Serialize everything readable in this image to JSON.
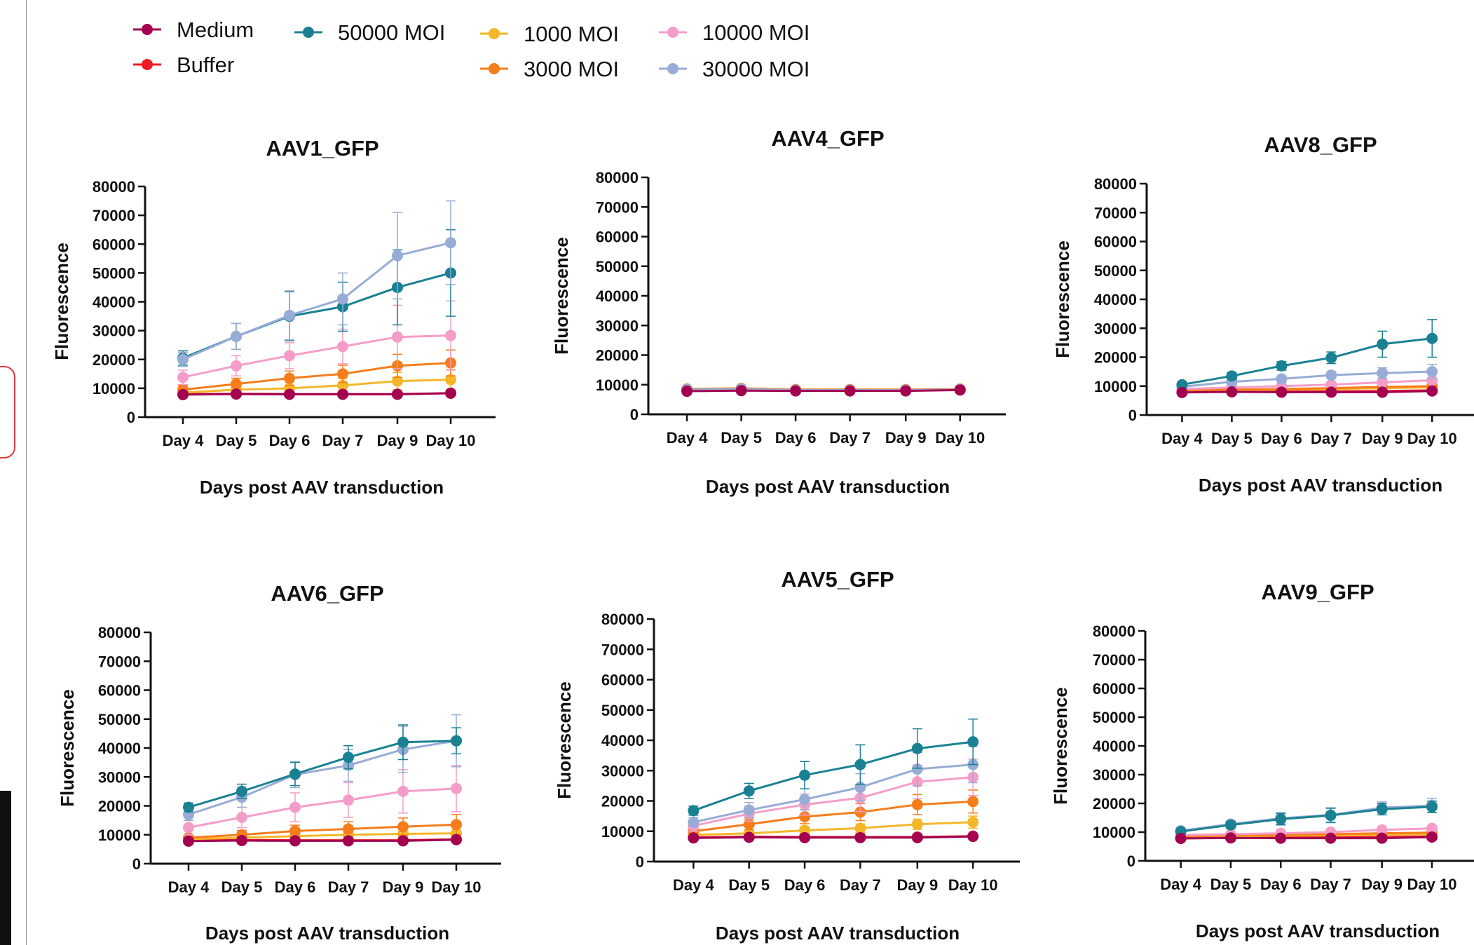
{
  "colors": {
    "Medium": "#a3004f",
    "Buffer": "#ee1c24",
    "50000 MOI": "#1a8193",
    "1000 MOI": "#f4b72a",
    "3000 MOI": "#f57d1c",
    "10000 MOI": "#f59dc8",
    "30000 MOI": "#97acd6"
  },
  "chart_data": [
    {
      "type": "line",
      "title": "AAV1_GFP",
      "xlabel": "Days post AAV transduction",
      "ylabel": "Fluorescence",
      "categories": [
        "Day 4",
        "Day 5",
        "Day 6",
        "Day 7",
        "Day 9",
        "Day 10"
      ],
      "ylim": [
        0,
        80000
      ],
      "yticks": [
        "0",
        "10000",
        "20000",
        "30000",
        "40000",
        "50000",
        "60000",
        "70000",
        "80000"
      ],
      "series": [
        {
          "name": "Buffer",
          "values": [
            8000,
            8100,
            8000,
            8000,
            8000,
            8300
          ],
          "errors": [
            500,
            500,
            500,
            500,
            500,
            500
          ]
        },
        {
          "name": "1000 MOI",
          "values": [
            8500,
            9500,
            10000,
            11000,
            12500,
            13000
          ],
          "errors": [
            1000,
            1500,
            2000,
            2500,
            3000,
            3500
          ]
        },
        {
          "name": "3000 MOI",
          "values": [
            9500,
            11500,
            13500,
            15000,
            17800,
            18800
          ],
          "errors": [
            1500,
            2000,
            2500,
            3000,
            4000,
            4500
          ]
        },
        {
          "name": "10000 MOI",
          "values": [
            13800,
            17800,
            21300,
            24500,
            27800,
            28300
          ],
          "errors": [
            2500,
            3500,
            4500,
            6000,
            11000,
            12000
          ]
        },
        {
          "name": "50000 MOI",
          "values": [
            20500,
            28000,
            35000,
            38300,
            45000,
            50000
          ],
          "errors": [
            2500,
            4500,
            8500,
            8500,
            13000,
            15000
          ]
        },
        {
          "name": "30000 MOI",
          "values": [
            20000,
            28000,
            35300,
            41000,
            56000,
            60500
          ],
          "errors": [
            2500,
            4500,
            8500,
            9000,
            15000,
            14500
          ]
        },
        {
          "name": "Medium",
          "values": [
            7800,
            8000,
            7900,
            7900,
            7900,
            8300
          ],
          "errors": [
            300,
            300,
            300,
            300,
            300,
            300
          ]
        }
      ]
    },
    {
      "type": "line",
      "title": "AAV4_GFP",
      "xlabel": "Days post AAV transduction",
      "ylabel": "Fluorescence",
      "categories": [
        "Day 4",
        "Day 5",
        "Day 6",
        "Day 7",
        "Day 9",
        "Day 10"
      ],
      "ylim": [
        0,
        80000
      ],
      "yticks": [
        "0",
        "10000",
        "20000",
        "30000",
        "40000",
        "50000",
        "60000",
        "70000",
        "80000"
      ],
      "series": [
        {
          "name": "Buffer",
          "values": [
            8300,
            8500,
            8200,
            8200,
            8200,
            8500
          ],
          "errors": [
            300,
            300,
            300,
            300,
            300,
            300
          ]
        },
        {
          "name": "1000 MOI",
          "values": [
            8600,
            8800,
            8400,
            8400,
            8400,
            8600
          ],
          "errors": [
            300,
            300,
            300,
            300,
            300,
            300
          ]
        },
        {
          "name": "3000 MOI",
          "values": [
            8500,
            8700,
            8300,
            8300,
            8300,
            8500
          ],
          "errors": [
            300,
            300,
            300,
            300,
            300,
            300
          ]
        },
        {
          "name": "10000 MOI",
          "values": [
            8400,
            8600,
            8200,
            8200,
            8200,
            8400
          ],
          "errors": [
            300,
            300,
            300,
            300,
            300,
            300
          ]
        },
        {
          "name": "50000 MOI",
          "values": [
            8300,
            8500,
            8100,
            8100,
            8100,
            8300
          ],
          "errors": [
            300,
            300,
            300,
            300,
            300,
            300
          ]
        },
        {
          "name": "30000 MOI",
          "values": [
            8300,
            8500,
            8100,
            8100,
            8100,
            8300
          ],
          "errors": [
            300,
            300,
            300,
            300,
            300,
            300
          ]
        },
        {
          "name": "Medium",
          "values": [
            7800,
            8000,
            7900,
            7900,
            7900,
            8200
          ],
          "errors": [
            300,
            300,
            300,
            300,
            300,
            300
          ]
        }
      ]
    },
    {
      "type": "line",
      "title": "AAV8_GFP",
      "xlabel": "Days post AAV transduction",
      "ylabel": "Fluorescence",
      "categories": [
        "Day 4",
        "Day 5",
        "Day 6",
        "Day 7",
        "Day 9",
        "Day 10"
      ],
      "ylim": [
        0,
        80000
      ],
      "yticks": [
        "0",
        "10000",
        "20000",
        "30000",
        "40000",
        "50000",
        "60000",
        "70000",
        "80000"
      ],
      "series": [
        {
          "name": "Buffer",
          "values": [
            8000,
            8200,
            8200,
            8200,
            8300,
            8500
          ],
          "errors": [
            300,
            300,
            300,
            300,
            300,
            300
          ]
        },
        {
          "name": "1000 MOI",
          "values": [
            8300,
            8600,
            8800,
            9000,
            9300,
            9600
          ],
          "errors": [
            400,
            400,
            400,
            400,
            500,
            500
          ]
        },
        {
          "name": "3000 MOI",
          "values": [
            8500,
            8800,
            9000,
            9300,
            9700,
            10000
          ],
          "errors": [
            400,
            400,
            400,
            400,
            500,
            500
          ]
        },
        {
          "name": "10000 MOI",
          "values": [
            9000,
            9500,
            10000,
            10500,
            11300,
            12000
          ],
          "errors": [
            500,
            500,
            600,
            600,
            700,
            800
          ]
        },
        {
          "name": "30000 MOI",
          "values": [
            9800,
            11500,
            12500,
            13800,
            14500,
            15000
          ],
          "errors": [
            600,
            800,
            1000,
            1200,
            1800,
            2500
          ]
        },
        {
          "name": "50000 MOI",
          "values": [
            10500,
            13500,
            17000,
            19800,
            24500,
            26500
          ],
          "errors": [
            800,
            1200,
            1500,
            2000,
            4500,
            6500
          ]
        },
        {
          "name": "Medium",
          "values": [
            7800,
            8000,
            7900,
            7900,
            7900,
            8300
          ],
          "errors": [
            300,
            300,
            300,
            300,
            300,
            300
          ]
        }
      ]
    },
    {
      "type": "line",
      "title": "AAV6_GFP",
      "xlabel": "Days post AAV transduction",
      "ylabel": "Fluorescence",
      "categories": [
        "Day 4",
        "Day 5",
        "Day 6",
        "Day 7",
        "Day 9",
        "Day 10"
      ],
      "ylim": [
        0,
        80000
      ],
      "yticks": [
        "0",
        "10000",
        "20000",
        "30000",
        "40000",
        "50000",
        "60000",
        "70000",
        "80000"
      ],
      "series": [
        {
          "name": "Buffer",
          "values": [
            8000,
            8200,
            8100,
            8100,
            8100,
            8400
          ],
          "errors": [
            400,
            400,
            400,
            400,
            400,
            400
          ]
        },
        {
          "name": "1000 MOI",
          "values": [
            8500,
            9000,
            9500,
            10000,
            10300,
            10500
          ],
          "errors": [
            800,
            1000,
            1200,
            1500,
            1800,
            2000
          ]
        },
        {
          "name": "3000 MOI",
          "values": [
            9000,
            10000,
            11300,
            12000,
            12800,
            13500
          ],
          "errors": [
            1000,
            1500,
            2000,
            2500,
            3000,
            3500
          ]
        },
        {
          "name": "10000 MOI",
          "values": [
            12500,
            16000,
            19500,
            22000,
            25000,
            26000
          ],
          "errors": [
            2500,
            3500,
            5000,
            6000,
            7500,
            8000
          ]
        },
        {
          "name": "30000 MOI",
          "values": [
            17000,
            23000,
            30800,
            34000,
            39500,
            42500
          ],
          "errors": [
            2000,
            3500,
            4500,
            5500,
            8000,
            9000
          ]
        },
        {
          "name": "50000 MOI",
          "values": [
            19500,
            25000,
            31000,
            36800,
            42000,
            42500
          ],
          "errors": [
            1500,
            2500,
            4000,
            4000,
            6000,
            4500
          ]
        },
        {
          "name": "Medium",
          "values": [
            7800,
            8000,
            7900,
            7900,
            7900,
            8300
          ],
          "errors": [
            300,
            300,
            300,
            300,
            300,
            300
          ]
        }
      ]
    },
    {
      "type": "line",
      "title": "AAV5_GFP",
      "xlabel": "Days post AAV transduction",
      "ylabel": "Fluorescence",
      "categories": [
        "Day 4",
        "Day 5",
        "Day 6",
        "Day 7",
        "Day 9",
        "Day 10"
      ],
      "ylim": [
        0,
        80000
      ],
      "yticks": [
        "0",
        "10000",
        "20000",
        "30000",
        "40000",
        "50000",
        "60000",
        "70000",
        "80000"
      ],
      "series": [
        {
          "name": "Buffer",
          "values": [
            8000,
            8200,
            8100,
            8100,
            8100,
            8400
          ],
          "errors": [
            300,
            300,
            300,
            300,
            300,
            300
          ]
        },
        {
          "name": "1000 MOI",
          "values": [
            8800,
            9300,
            10300,
            11000,
            12300,
            13000
          ],
          "errors": [
            700,
            900,
            1100,
            1400,
            1700,
            2000
          ]
        },
        {
          "name": "3000 MOI",
          "values": [
            10000,
            12300,
            14800,
            16300,
            18800,
            19800
          ],
          "errors": [
            1200,
            1800,
            2300,
            2800,
            3300,
            3800
          ]
        },
        {
          "name": "10000 MOI",
          "values": [
            11800,
            15800,
            18800,
            21000,
            26300,
            27800
          ],
          "errors": [
            1800,
            2500,
            3500,
            4500,
            5500,
            6000
          ]
        },
        {
          "name": "30000 MOI",
          "values": [
            13000,
            17000,
            20500,
            24500,
            30500,
            32000
          ],
          "errors": [
            1500,
            2500,
            3500,
            4500,
            5500,
            6000
          ]
        },
        {
          "name": "50000 MOI",
          "values": [
            16800,
            23300,
            28500,
            32000,
            37300,
            39500
          ],
          "errors": [
            1500,
            2500,
            4500,
            6500,
            6500,
            7500
          ]
        },
        {
          "name": "Medium",
          "values": [
            7800,
            8000,
            7900,
            7900,
            7900,
            8300
          ],
          "errors": [
            300,
            300,
            300,
            300,
            300,
            300
          ]
        }
      ]
    },
    {
      "type": "line",
      "title": "AAV9_GFP",
      "xlabel": "Days post AAV transduction",
      "ylabel": "Fluorescence",
      "categories": [
        "Day 4",
        "Day 5",
        "Day 6",
        "Day 7",
        "Day 9",
        "Day 10"
      ],
      "ylim": [
        0,
        80000
      ],
      "yticks": [
        "0",
        "10000",
        "20000",
        "30000",
        "40000",
        "50000",
        "60000",
        "70000",
        "80000"
      ],
      "series": [
        {
          "name": "Buffer",
          "values": [
            8000,
            8200,
            8200,
            8200,
            8300,
            8500
          ],
          "errors": [
            300,
            300,
            300,
            300,
            300,
            300
          ]
        },
        {
          "name": "1000 MOI",
          "values": [
            8300,
            8600,
            8800,
            8900,
            9100,
            9300
          ],
          "errors": [
            300,
            300,
            300,
            300,
            300,
            300
          ]
        },
        {
          "name": "3000 MOI",
          "values": [
            8500,
            8900,
            9100,
            9300,
            9600,
            9800
          ],
          "errors": [
            300,
            300,
            300,
            300,
            300,
            300
          ]
        },
        {
          "name": "10000 MOI",
          "values": [
            9000,
            9300,
            9600,
            10000,
            10800,
            11300
          ],
          "errors": [
            500,
            500,
            500,
            500,
            600,
            700
          ]
        },
        {
          "name": "30000 MOI",
          "values": [
            10500,
            12800,
            14800,
            16000,
            18500,
            19300
          ],
          "errors": [
            800,
            1200,
            2000,
            2500,
            2000,
            2500
          ]
        },
        {
          "name": "50000 MOI",
          "values": [
            10200,
            12500,
            14500,
            15800,
            18000,
            18800
          ],
          "errors": [
            800,
            1200,
            2000,
            2500,
            2000,
            2000
          ]
        },
        {
          "name": "Medium",
          "values": [
            7800,
            8000,
            7900,
            7900,
            7900,
            8300
          ],
          "errors": [
            300,
            300,
            300,
            300,
            300,
            300
          ]
        }
      ]
    }
  ],
  "legend": [
    {
      "label": "Medium"
    },
    {
      "label": "Buffer"
    },
    {
      "label": "50000 MOI"
    },
    {
      "label": "1000 MOI"
    },
    {
      "label": "3000 MOI"
    },
    {
      "label": "10000 MOI"
    },
    {
      "label": "30000 MOI"
    }
  ]
}
